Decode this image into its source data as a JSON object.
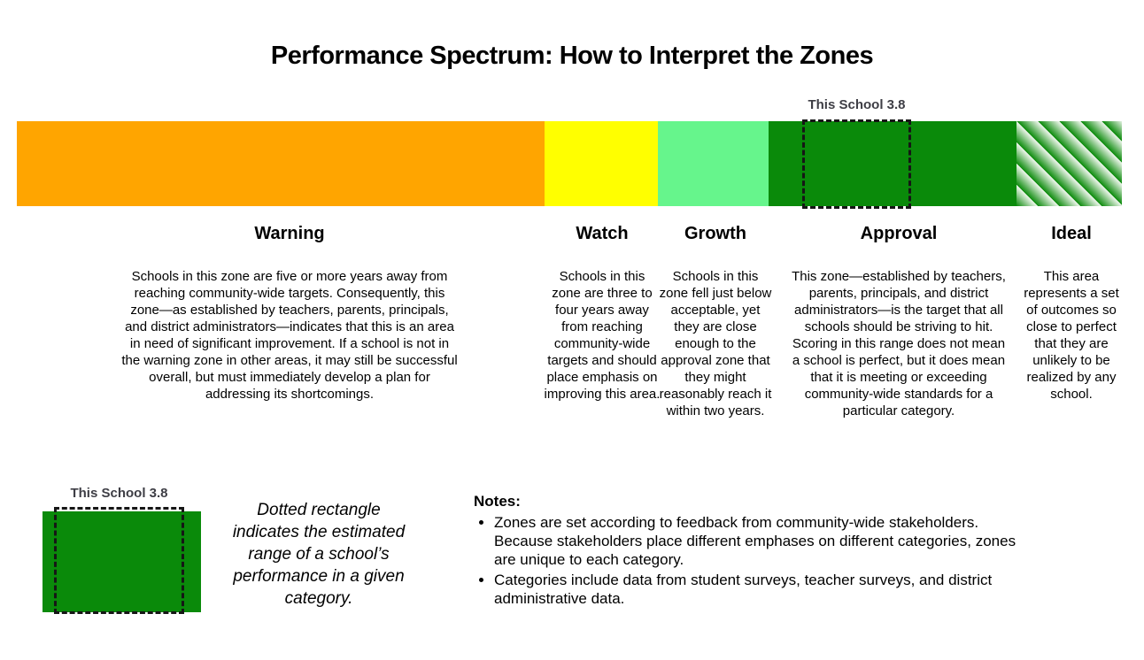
{
  "title": "Performance Spectrum: How to Interpret the Zones",
  "bar_marker": {
    "label": "This School 3.8",
    "value": "3.8"
  },
  "zones": [
    {
      "label": "Warning",
      "color": "#FFA500",
      "description": "Schools in this zone are five or more years away from reaching community-wide targets. Consequently, this zone—as established by teachers, parents, principals, and district administrators—indicates that this is an area in need of significant improvement. If a school is not in the warning zone in other areas, it may still be successful overall, but must immediately develop a plan for addressing its shortcomings."
    },
    {
      "label": "Watch",
      "color": "#FFFF00",
      "description": "Schools in this zone are three to four years away from reaching community-wide targets and should place emphasis on improving this area."
    },
    {
      "label": "Growth",
      "color": "#66F58C",
      "description": "Schools in this zone fell just below acceptable, yet they are close enough to the approval zone that they might reasonably reach it within two years."
    },
    {
      "label": "Approval",
      "color": "#0A8A0A",
      "description": "This zone—established by teachers, parents, principals, and district administrators—is the target that all schools should be striving to hit. Scoring in this range does not mean a school is perfect, but it does mean that it is meeting or exceeding community-wide standards for a particular category."
    },
    {
      "label": "Ideal",
      "color_pattern": {
        "type": "diagonal-stripes",
        "dark": "#0A8A0A",
        "light": "#F0F7EE"
      },
      "description": "This area represents a set of outcomes so close to perfect that they are unlikely to be realized by any school."
    }
  ],
  "legend": {
    "marker_label": "This School 3.8",
    "swatch_color": "#0A8A0A",
    "caption": "Dotted rectangle indicates the estimated range of a school’s performance in a given category."
  },
  "notes": {
    "heading": "Notes:",
    "items": [
      "Zones are set according to feedback from community-wide stakeholders. Because stakeholders place different emphases on different categories, zones are unique to each category.",
      "Categories include data from student surveys, teacher surveys, and district administrative data."
    ]
  }
}
